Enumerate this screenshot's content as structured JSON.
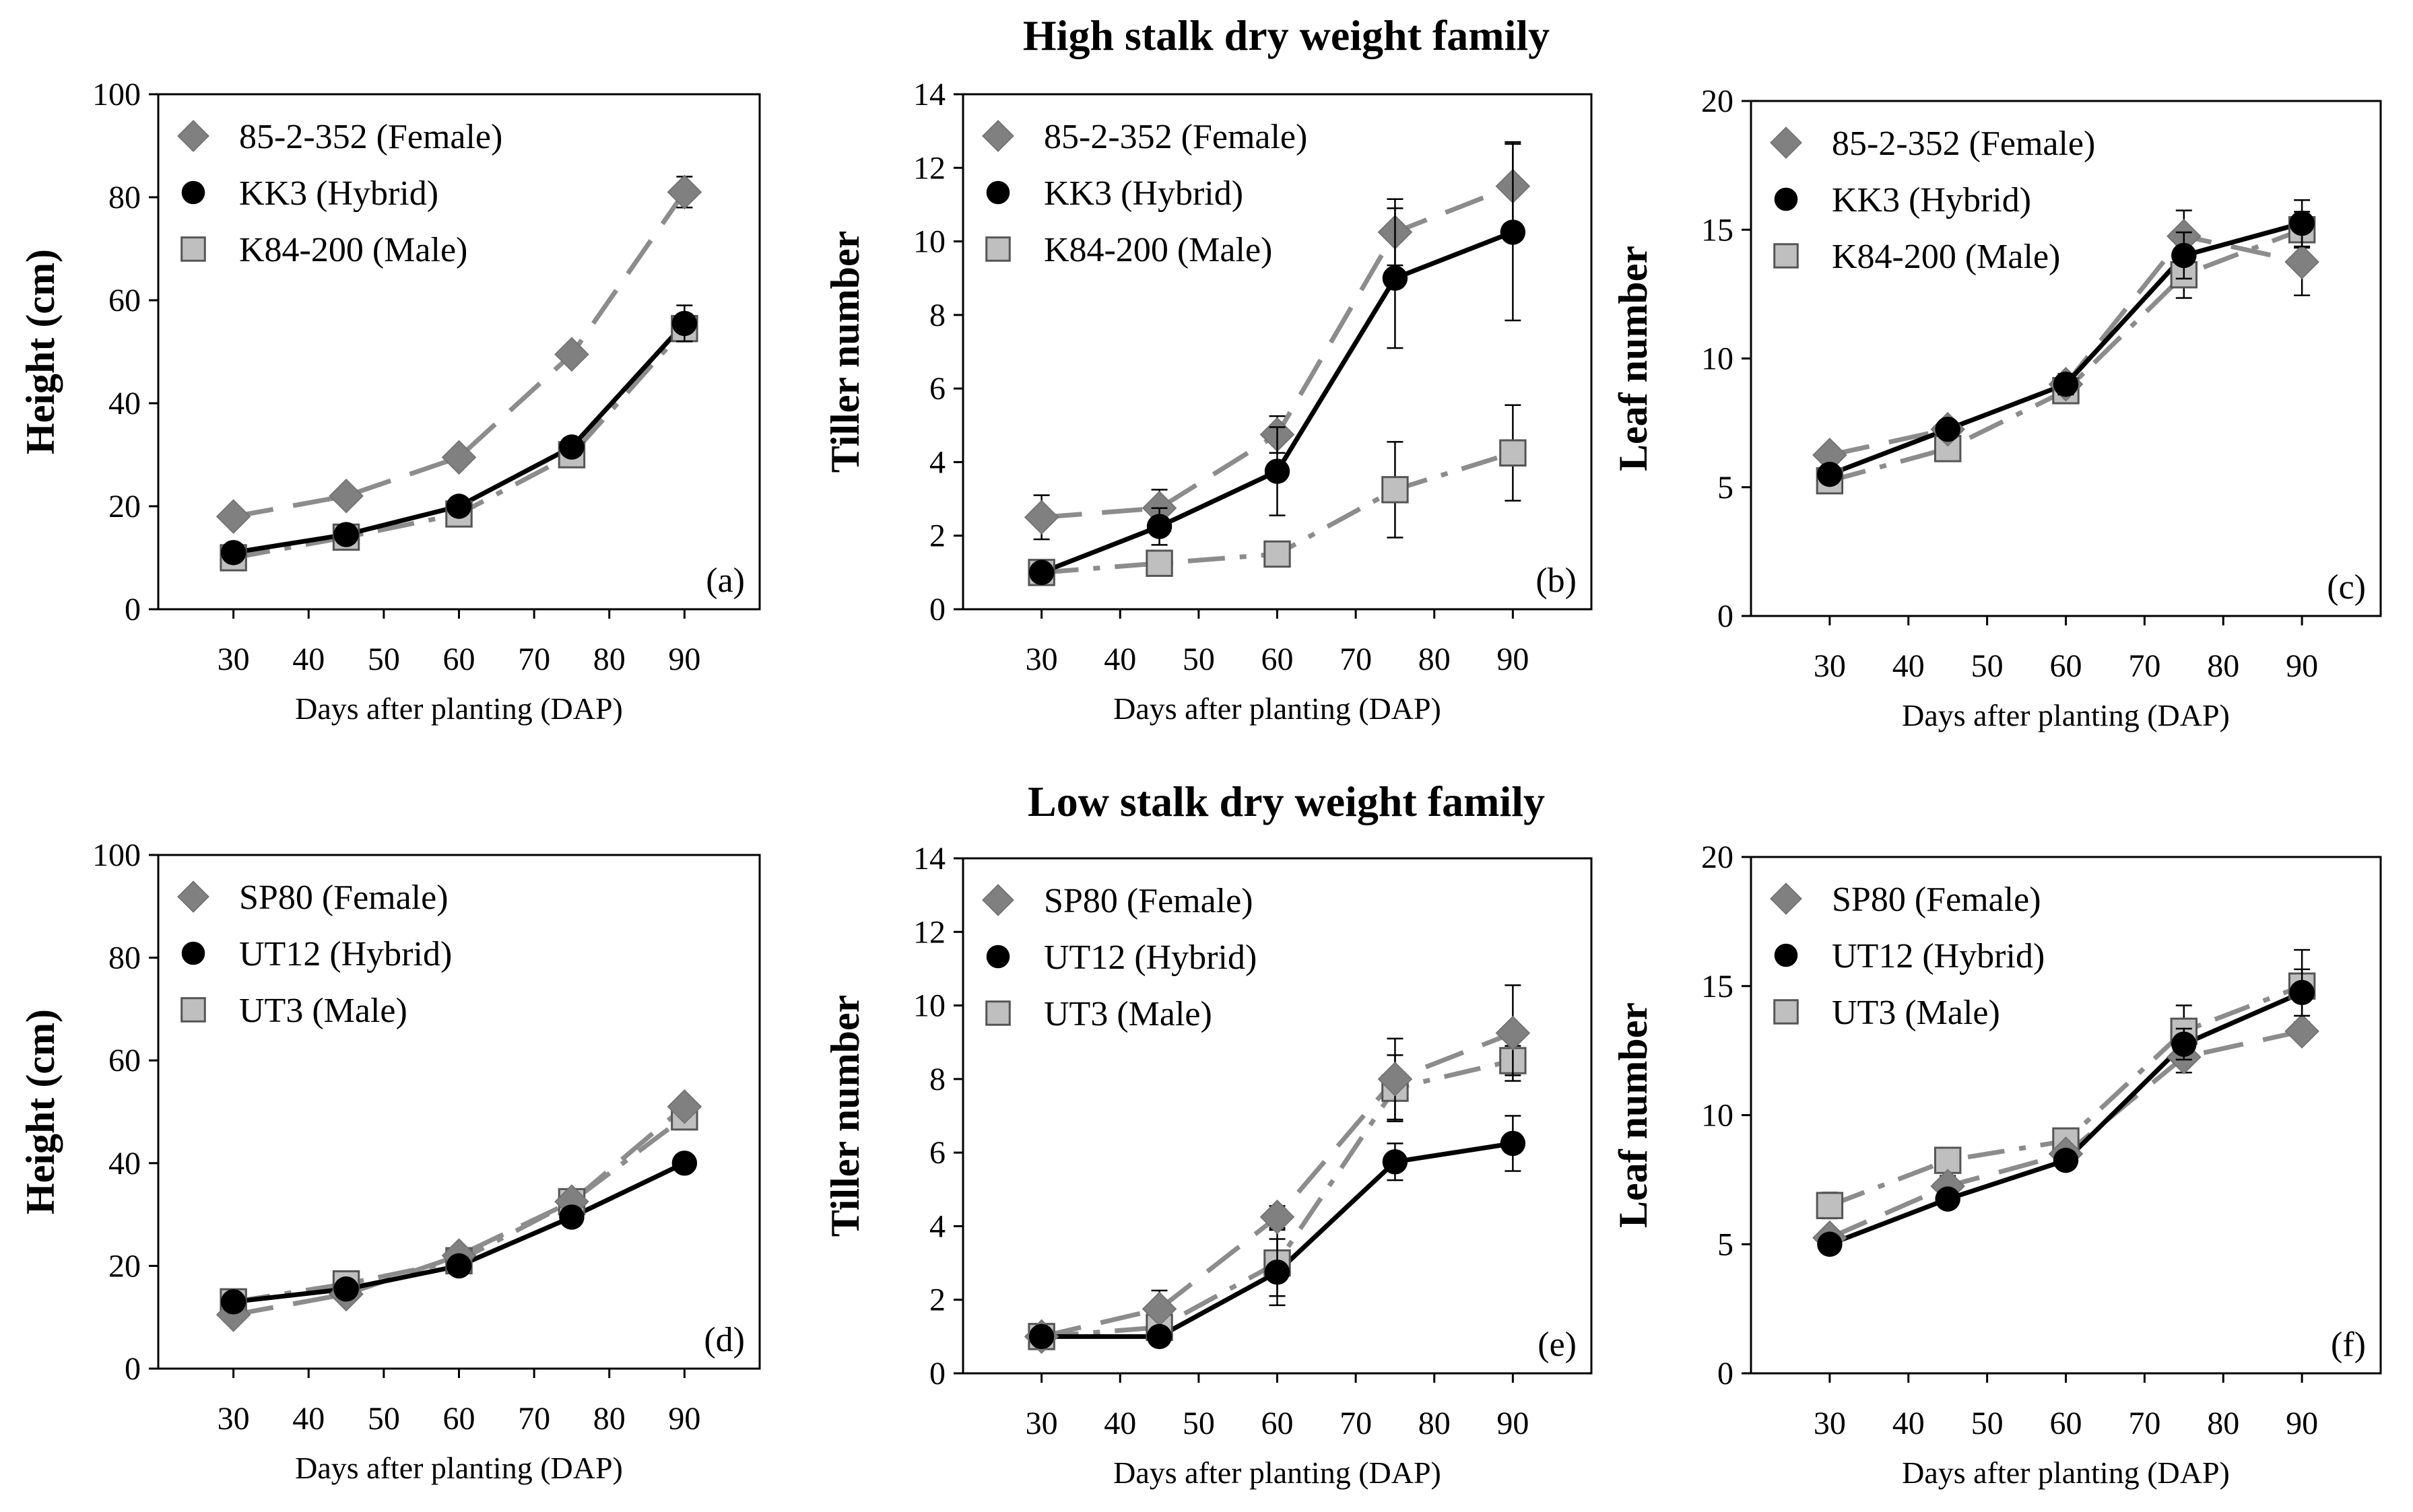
{
  "figure": {
    "row_titles": [
      "High stalk dry weight family",
      "Low stalk dry weight family"
    ],
    "colors": {
      "female": "#808080",
      "hybrid": "#000000",
      "male": "#bfbfbf",
      "female_line": "#8c8c8c",
      "male_line": "#8c8c8c",
      "hybrid_line": "#000000",
      "axis": "#000000"
    }
  },
  "chart_data": [
    {
      "panel": "(a)",
      "type": "line",
      "xlabel": "Days after planting (DAP)",
      "ylabel": "Height (cm)",
      "xlim": [
        20,
        100
      ],
      "ylim": [
        0,
        100
      ],
      "xticks": [
        30,
        40,
        50,
        60,
        70,
        80,
        90
      ],
      "yticks": [
        0,
        20,
        40,
        60,
        80,
        100
      ],
      "x": [
        30,
        45,
        60,
        75,
        90
      ],
      "series": [
        {
          "name": "85-2-352 (Female)",
          "role": "female",
          "values": [
            18,
            22,
            29.5,
            49.5,
            81
          ],
          "err": [
            0.8,
            0.8,
            1,
            1.2,
            3
          ]
        },
        {
          "name": "KK3 (Hybrid)",
          "role": "hybrid",
          "values": [
            11,
            14.5,
            20,
            31.5,
            55.5
          ],
          "err": [
            0.8,
            0.8,
            0.8,
            1,
            3.5
          ]
        },
        {
          "name": "K84-200 (Male)",
          "role": "male",
          "values": [
            10,
            14,
            18.5,
            30,
            54.5
          ],
          "err": [
            0.8,
            0.8,
            0.8,
            1,
            2
          ]
        }
      ]
    },
    {
      "panel": "(b)",
      "type": "line",
      "xlabel": "Days after planting (DAP)",
      "ylabel": "Tiller number",
      "xlim": [
        20,
        100
      ],
      "ylim": [
        0,
        14
      ],
      "xticks": [
        30,
        40,
        50,
        60,
        70,
        80,
        90
      ],
      "yticks": [
        0,
        2,
        4,
        6,
        8,
        10,
        12,
        14
      ],
      "x": [
        30,
        45,
        60,
        75,
        90
      ],
      "series": [
        {
          "name": "85-2-352 (Female)",
          "role": "female",
          "values": [
            2.5,
            2.75,
            4.75,
            10.25,
            11.5
          ],
          "err": [
            0.6,
            0.5,
            0.5,
            0.9,
            1.2
          ]
        },
        {
          "name": "KK3 (Hybrid)",
          "role": "hybrid",
          "values": [
            1,
            2.25,
            3.75,
            9,
            10.25
          ],
          "err": [
            0.1,
            0.5,
            1.2,
            1.9,
            2.4
          ]
        },
        {
          "name": "K84-200 (Male)",
          "role": "male",
          "values": [
            1,
            1.25,
            1.5,
            3.25,
            4.25
          ],
          "err": [
            0.1,
            0.3,
            0.3,
            1.3,
            1.3
          ]
        }
      ]
    },
    {
      "panel": "(c)",
      "type": "line",
      "xlabel": "Days after planting (DAP)",
      "ylabel": "Leaf number",
      "xlim": [
        20,
        100
      ],
      "ylim": [
        0,
        20
      ],
      "xticks": [
        30,
        40,
        50,
        60,
        70,
        80,
        90
      ],
      "yticks": [
        0,
        5,
        10,
        15,
        20
      ],
      "x": [
        30,
        45,
        60,
        75,
        90
      ],
      "series": [
        {
          "name": "85-2-352 (Female)",
          "role": "female",
          "values": [
            6.25,
            7.25,
            9,
            14.75,
            13.75
          ],
          "err": [
            0.3,
            0.3,
            0.4,
            1,
            1.3
          ]
        },
        {
          "name": "KK3 (Hybrid)",
          "role": "hybrid",
          "values": [
            5.5,
            7.25,
            9,
            14,
            15.25
          ],
          "err": [
            0.3,
            0.3,
            0.4,
            0.9,
            0.9
          ]
        },
        {
          "name": "K84-200 (Male)",
          "role": "male",
          "values": [
            5.25,
            6.5,
            8.75,
            13.25,
            15
          ],
          "err": [
            0.3,
            0.3,
            0.4,
            0.9,
            0.7
          ]
        }
      ]
    },
    {
      "panel": "(d)",
      "type": "line",
      "xlabel": "Days after planting (DAP)",
      "ylabel": "Height (cm)",
      "xlim": [
        20,
        100
      ],
      "ylim": [
        0,
        100
      ],
      "xticks": [
        30,
        40,
        50,
        60,
        70,
        80,
        90
      ],
      "yticks": [
        0,
        20,
        40,
        60,
        80,
        100
      ],
      "x": [
        30,
        45,
        60,
        75,
        90
      ],
      "series": [
        {
          "name": "SP80 (Female)",
          "role": "female",
          "values": [
            10.5,
            14.5,
            22,
            32.5,
            51
          ],
          "err": [
            0.8,
            0.8,
            0.8,
            1,
            1.2
          ]
        },
        {
          "name": "UT12 (Hybrid)",
          "role": "hybrid",
          "values": [
            13,
            15.5,
            20,
            29.5,
            40
          ],
          "err": [
            0.8,
            0.8,
            0.8,
            0.8,
            0.8
          ]
        },
        {
          "name": "UT3 (Male)",
          "role": "male",
          "values": [
            13,
            16.5,
            21,
            32.5,
            49
          ],
          "err": [
            0.8,
            0.8,
            0.8,
            1,
            1.5
          ]
        }
      ]
    },
    {
      "panel": "(e)",
      "type": "line",
      "xlabel": "Days after planting (DAP)",
      "ylabel": "Tiller number",
      "xlim": [
        20,
        100
      ],
      "ylim": [
        0,
        14
      ],
      "xticks": [
        30,
        40,
        50,
        60,
        70,
        80,
        90
      ],
      "yticks": [
        0,
        2,
        4,
        6,
        8,
        10,
        12,
        14
      ],
      "x": [
        30,
        45,
        60,
        75,
        90
      ],
      "series": [
        {
          "name": "SP80 (Female)",
          "role": "female",
          "values": [
            1,
            1.75,
            4.25,
            8,
            9.25
          ],
          "err": [
            0.1,
            0.5,
            0.3,
            1.1,
            1.3
          ]
        },
        {
          "name": "UT12 (Hybrid)",
          "role": "hybrid",
          "values": [
            1,
            1,
            2.75,
            5.75,
            6.25
          ],
          "err": [
            0.1,
            0.1,
            0.9,
            0.5,
            0.75
          ]
        },
        {
          "name": "UT3 (Male)",
          "role": "male",
          "values": [
            1,
            1.25,
            3,
            7.75,
            8.5
          ],
          "err": [
            0.1,
            0.3,
            0.9,
            0.9,
            0.4
          ]
        }
      ]
    },
    {
      "panel": "(f)",
      "type": "line",
      "xlabel": "Days after planting (DAP)",
      "ylabel": "Leaf number",
      "xlim": [
        20,
        100
      ],
      "ylim": [
        0,
        20
      ],
      "xticks": [
        30,
        40,
        50,
        60,
        70,
        80,
        90
      ],
      "yticks": [
        0,
        5,
        10,
        15,
        20
      ],
      "x": [
        30,
        45,
        60,
        75,
        90
      ],
      "series": [
        {
          "name": "SP80 (Female)",
          "role": "female",
          "values": [
            5.25,
            7.25,
            8.5,
            12.25,
            13.25
          ],
          "err": [
            0.3,
            0.4,
            0.3,
            0.6,
            0.3
          ]
        },
        {
          "name": "UT12 (Hybrid)",
          "role": "hybrid",
          "values": [
            5,
            6.75,
            8.25,
            12.75,
            14.75
          ],
          "err": [
            0.2,
            0.3,
            0.3,
            0.6,
            0.9
          ]
        },
        {
          "name": "UT3 (Male)",
          "role": "male",
          "values": [
            6.5,
            8.25,
            9,
            13.25,
            15
          ],
          "err": [
            0.5,
            0.4,
            0.3,
            1,
            1.4
          ]
        }
      ]
    }
  ]
}
